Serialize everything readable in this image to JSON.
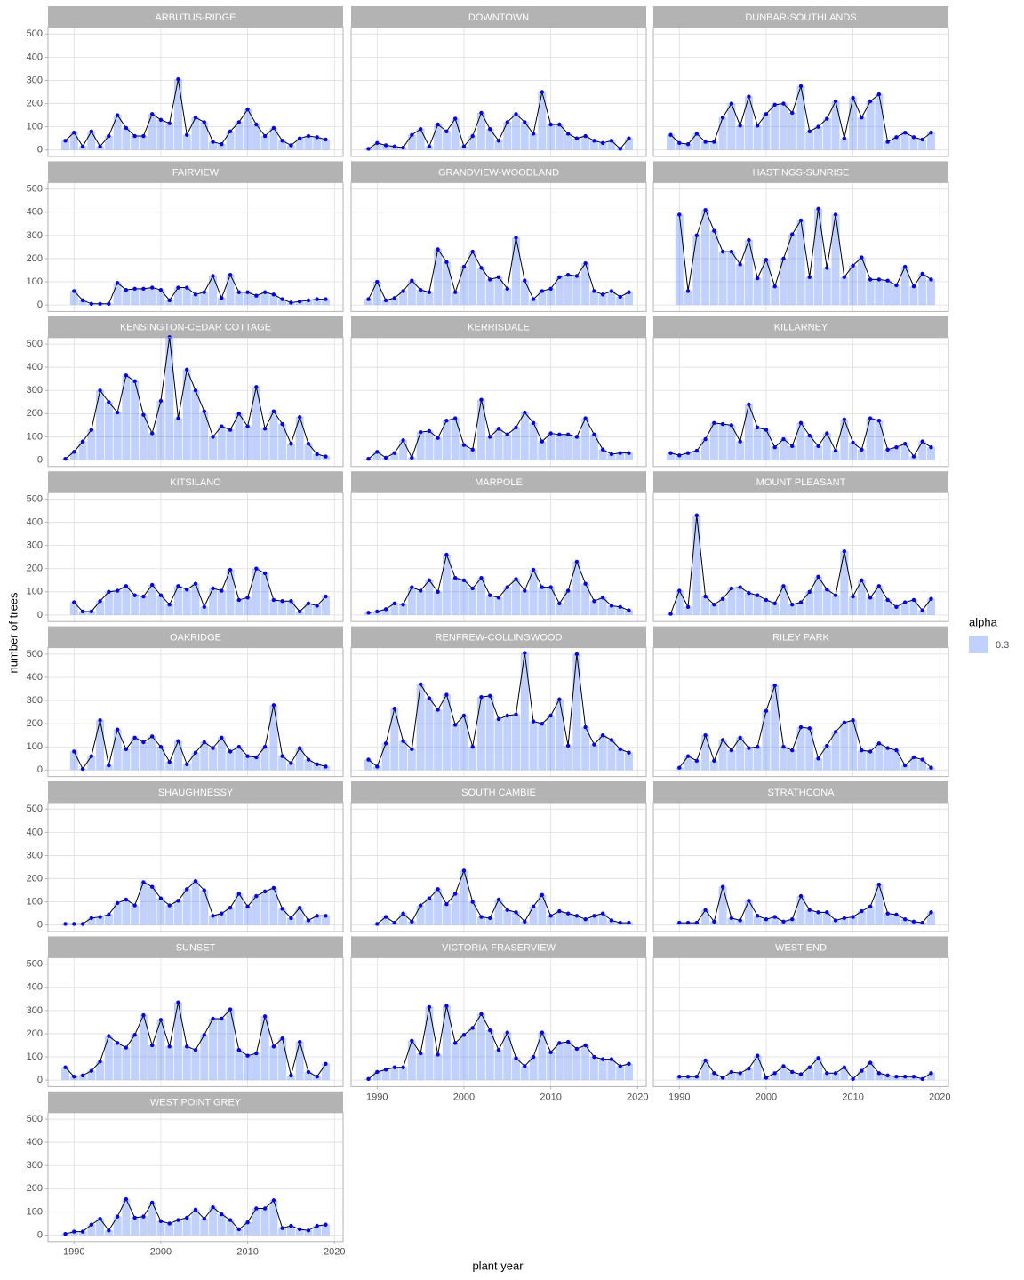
{
  "chart_data": {
    "type": "bar-line",
    "x_label": "plant year",
    "y_label": "number of trees",
    "x": [
      1989,
      1990,
      1991,
      1992,
      1993,
      1994,
      1995,
      1996,
      1997,
      1998,
      1999,
      2000,
      2001,
      2002,
      2003,
      2004,
      2005,
      2006,
      2007,
      2008,
      2009,
      2010,
      2011,
      2012,
      2013,
      2014,
      2015,
      2016,
      2017,
      2018,
      2019
    ],
    "xlim": [
      1987,
      2021
    ],
    "xticks": [
      1990,
      2000,
      2010,
      2020
    ],
    "ylim": [
      -28,
      528
    ],
    "yticks": [
      0,
      100,
      200,
      300,
      400,
      500
    ],
    "grid": true,
    "bar_color": "#3366ff",
    "line_color": "#000000",
    "point_color": "#0000ff",
    "legend": {
      "title": "alpha",
      "label": 0.3,
      "position": "right"
    },
    "facets": [
      {
        "title": "ARBUTUS-RIDGE",
        "values": [
          40,
          75,
          15,
          80,
          15,
          60,
          150,
          95,
          60,
          60,
          155,
          130,
          115,
          305,
          65,
          140,
          120,
          35,
          25,
          80,
          120,
          175,
          110,
          60,
          95,
          40,
          20,
          50,
          60,
          55,
          45
        ]
      },
      {
        "title": "DOWNTOWN",
        "values": [
          5,
          30,
          20,
          15,
          10,
          65,
          90,
          15,
          110,
          80,
          135,
          15,
          60,
          160,
          90,
          40,
          120,
          155,
          120,
          70,
          250,
          110,
          110,
          70,
          50,
          60,
          40,
          30,
          40,
          5,
          50
        ]
      },
      {
        "title": "DUNBAR-SOUTHLANDS",
        "values": [
          65,
          30,
          25,
          70,
          35,
          35,
          140,
          200,
          105,
          230,
          105,
          155,
          195,
          200,
          160,
          275,
          80,
          100,
          135,
          210,
          50,
          225,
          140,
          210,
          240,
          35,
          55,
          75,
          55,
          45,
          75
        ]
      },
      {
        "title": "FAIRVIEW",
        "values": [
          null,
          60,
          20,
          5,
          5,
          5,
          95,
          65,
          70,
          70,
          75,
          65,
          20,
          75,
          75,
          45,
          55,
          125,
          30,
          130,
          55,
          55,
          40,
          55,
          45,
          25,
          10,
          15,
          20,
          25,
          25
        ]
      },
      {
        "title": "GRANDVIEW-WOODLAND",
        "values": [
          25,
          100,
          20,
          30,
          60,
          105,
          65,
          55,
          240,
          185,
          55,
          165,
          230,
          160,
          110,
          120,
          70,
          290,
          105,
          25,
          60,
          70,
          120,
          130,
          125,
          180,
          60,
          45,
          60,
          35,
          55
        ]
      },
      {
        "title": "HASTINGS-SUNRISE",
        "values": [
          null,
          390,
          60,
          300,
          410,
          320,
          230,
          230,
          175,
          280,
          115,
          195,
          80,
          200,
          305,
          365,
          120,
          415,
          160,
          390,
          120,
          170,
          205,
          110,
          110,
          105,
          85,
          165,
          80,
          135,
          110
        ]
      },
      {
        "title": "KENSINGTON-CEDAR COTTAGE",
        "values": [
          5,
          35,
          80,
          130,
          300,
          250,
          205,
          365,
          340,
          195,
          115,
          255,
          530,
          180,
          390,
          300,
          210,
          100,
          145,
          130,
          200,
          145,
          315,
          135,
          210,
          155,
          70,
          185,
          70,
          25,
          15
        ]
      },
      {
        "title": "KERRISDALE",
        "values": [
          5,
          35,
          10,
          30,
          85,
          10,
          120,
          125,
          95,
          170,
          180,
          65,
          45,
          260,
          100,
          135,
          110,
          140,
          205,
          160,
          80,
          115,
          110,
          110,
          100,
          180,
          110,
          45,
          25,
          30,
          30
        ]
      },
      {
        "title": "KILLARNEY",
        "values": [
          30,
          20,
          30,
          40,
          90,
          160,
          155,
          150,
          80,
          240,
          140,
          130,
          55,
          90,
          60,
          160,
          105,
          60,
          115,
          40,
          175,
          75,
          45,
          180,
          170,
          45,
          55,
          70,
          15,
          80,
          55
        ]
      },
      {
        "title": "KITSILANO",
        "values": [
          null,
          55,
          15,
          15,
          60,
          100,
          105,
          125,
          85,
          80,
          130,
          85,
          45,
          125,
          110,
          135,
          35,
          115,
          105,
          195,
          65,
          75,
          200,
          180,
          65,
          60,
          60,
          15,
          50,
          40,
          80
        ]
      },
      {
        "title": "MARPOLE",
        "values": [
          10,
          15,
          25,
          50,
          45,
          120,
          105,
          150,
          100,
          260,
          160,
          150,
          115,
          160,
          85,
          75,
          120,
          155,
          105,
          195,
          120,
          120,
          50,
          105,
          230,
          135,
          60,
          75,
          40,
          35,
          20
        ]
      },
      {
        "title": "MOUNT PLEASANT",
        "values": [
          5,
          105,
          35,
          430,
          80,
          45,
          70,
          115,
          120,
          95,
          85,
          65,
          50,
          125,
          45,
          55,
          100,
          165,
          110,
          85,
          275,
          80,
          150,
          75,
          125,
          65,
          35,
          55,
          65,
          20,
          70
        ]
      },
      {
        "title": "OAKRIDGE",
        "values": [
          null,
          80,
          5,
          60,
          215,
          20,
          175,
          90,
          140,
          120,
          145,
          100,
          35,
          125,
          25,
          75,
          120,
          95,
          140,
          80,
          100,
          60,
          55,
          100,
          280,
          60,
          30,
          95,
          45,
          25,
          15
        ]
      },
      {
        "title": "RENFREW-COLLINGWOOD",
        "values": [
          45,
          15,
          115,
          265,
          125,
          90,
          370,
          310,
          260,
          325,
          195,
          235,
          100,
          315,
          320,
          220,
          235,
          240,
          505,
          210,
          200,
          235,
          305,
          105,
          500,
          185,
          110,
          150,
          130,
          90,
          75
        ]
      },
      {
        "title": "RILEY PARK",
        "values": [
          null,
          10,
          60,
          40,
          150,
          40,
          130,
          85,
          140,
          95,
          100,
          255,
          365,
          100,
          85,
          185,
          180,
          50,
          105,
          165,
          205,
          215,
          85,
          80,
          115,
          95,
          85,
          20,
          55,
          45,
          10
        ]
      },
      {
        "title": "SHAUGHNESSY",
        "values": [
          5,
          5,
          5,
          30,
          35,
          45,
          95,
          110,
          85,
          185,
          165,
          115,
          85,
          105,
          155,
          190,
          150,
          40,
          50,
          75,
          135,
          80,
          125,
          145,
          160,
          70,
          30,
          75,
          20,
          40,
          40
        ]
      },
      {
        "title": "SOUTH CAMBIE",
        "values": [
          null,
          5,
          35,
          10,
          50,
          15,
          85,
          115,
          155,
          90,
          135,
          235,
          100,
          35,
          30,
          110,
          65,
          55,
          15,
          80,
          130,
          40,
          60,
          50,
          40,
          25,
          40,
          50,
          20,
          10,
          10
        ]
      },
      {
        "title": "STRATHCONA",
        "values": [
          null,
          10,
          10,
          10,
          65,
          15,
          165,
          30,
          20,
          105,
          40,
          25,
          35,
          15,
          25,
          125,
          65,
          55,
          55,
          20,
          30,
          35,
          60,
          80,
          175,
          50,
          45,
          25,
          15,
          10,
          55
        ]
      },
      {
        "title": "SUNSET",
        "values": [
          55,
          15,
          20,
          40,
          80,
          190,
          160,
          140,
          195,
          280,
          150,
          260,
          145,
          335,
          145,
          130,
          195,
          265,
          265,
          305,
          130,
          105,
          115,
          275,
          145,
          180,
          20,
          165,
          35,
          15,
          70
        ]
      },
      {
        "title": "VICTORIA-FRASERVIEW",
        "values": [
          5,
          35,
          45,
          55,
          55,
          170,
          115,
          315,
          110,
          320,
          160,
          195,
          225,
          285,
          215,
          130,
          205,
          95,
          60,
          100,
          205,
          120,
          160,
          165,
          135,
          150,
          100,
          90,
          90,
          60,
          70
        ]
      },
      {
        "title": "WEST END",
        "values": [
          null,
          15,
          15,
          15,
          85,
          30,
          10,
          35,
          30,
          50,
          105,
          10,
          30,
          60,
          35,
          25,
          55,
          95,
          30,
          30,
          55,
          5,
          40,
          75,
          30,
          20,
          15,
          15,
          15,
          5,
          30
        ]
      },
      {
        "title": "WEST POINT GREY",
        "values": [
          5,
          15,
          15,
          45,
          70,
          20,
          80,
          155,
          75,
          80,
          140,
          60,
          50,
          65,
          75,
          110,
          70,
          120,
          90,
          65,
          25,
          55,
          115,
          115,
          150,
          30,
          40,
          25,
          20,
          40,
          45
        ]
      }
    ]
  }
}
